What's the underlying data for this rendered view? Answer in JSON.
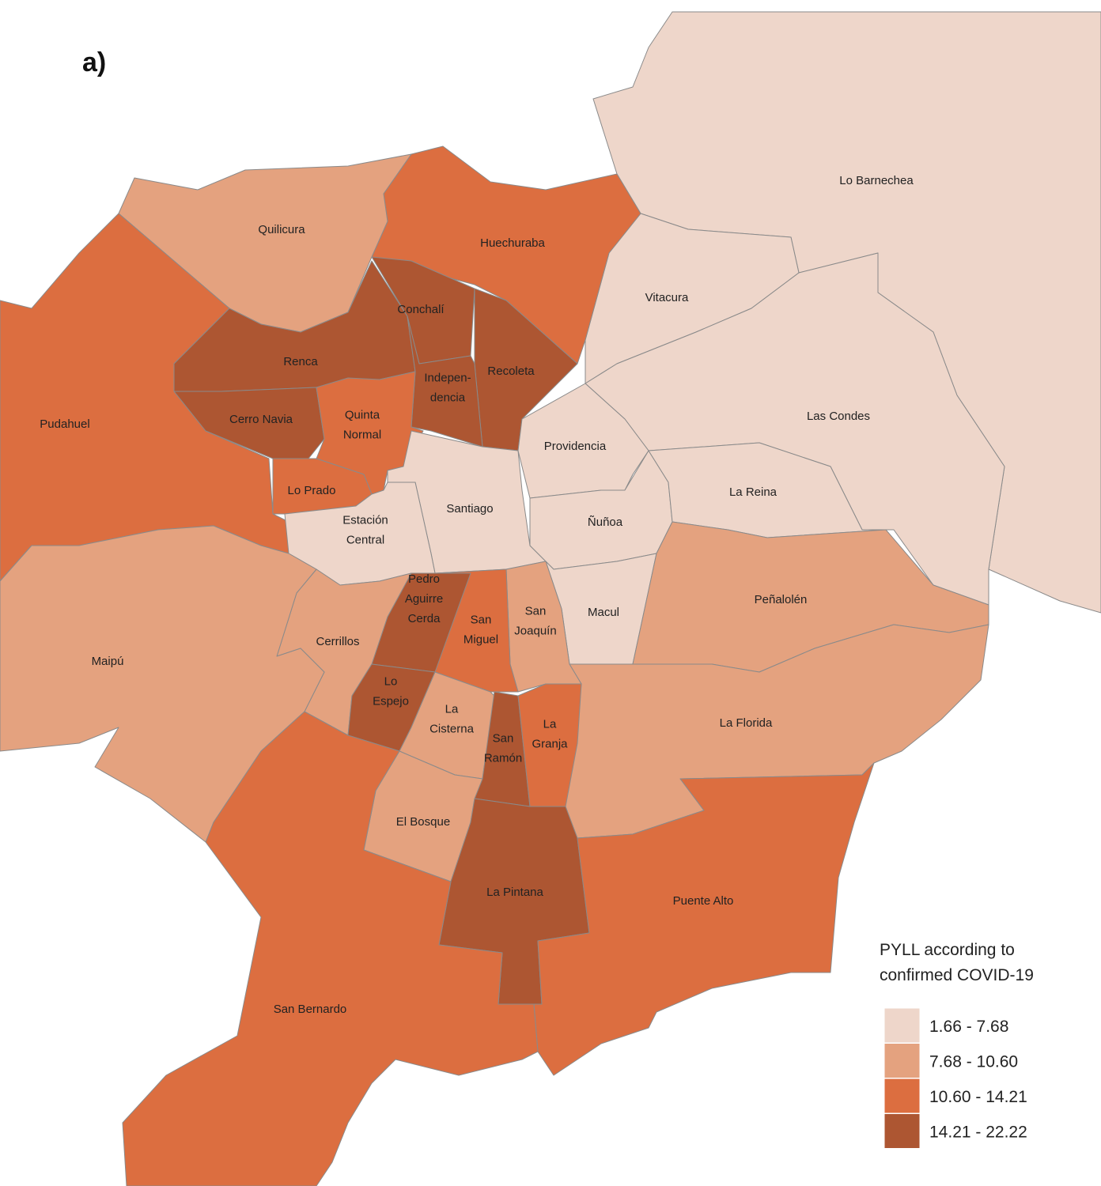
{
  "panel_label": "a)",
  "legend": {
    "title": [
      "PYLL according to",
      "confirmed COVID-19"
    ],
    "classes": [
      {
        "label": "1.66 - 7.68",
        "color": "#eed6ca"
      },
      {
        "label": "7.68 - 10.60",
        "color": "#e4a27f"
      },
      {
        "label": "10.60 - 14.21",
        "color": "#dc6e40"
      },
      {
        "label": "14.21 - 22.22",
        "color": "#ad5632"
      }
    ]
  },
  "regions": [
    {
      "label": [
        "Lo Barnechea"
      ],
      "class": 0
    },
    {
      "label": [
        "Vitacura"
      ],
      "class": 0
    },
    {
      "label": [
        "Las Condes"
      ],
      "class": 0
    },
    {
      "label": [
        "Huechuraba"
      ],
      "class": 2
    },
    {
      "label": [
        "Quilicura"
      ],
      "class": 1
    },
    {
      "label": [
        "Pudahuel"
      ],
      "class": 2
    },
    {
      "label": [
        "Renca"
      ],
      "class": 3
    },
    {
      "label": [
        "Conchalí"
      ],
      "class": 3
    },
    {
      "label": [
        "Recoleta"
      ],
      "class": 3
    },
    {
      "label": [
        "Indepen-",
        "dencia"
      ],
      "class": 3
    },
    {
      "label": [
        "Cerro Navia"
      ],
      "class": 3
    },
    {
      "label": [
        "Quinta",
        "Normal"
      ],
      "class": 2
    },
    {
      "label": [
        "Lo Prado"
      ],
      "class": 2
    },
    {
      "label": [
        "Santiago"
      ],
      "class": 0
    },
    {
      "label": [
        "Estación",
        "Central"
      ],
      "class": 0
    },
    {
      "label": [
        "Providencia"
      ],
      "class": 0
    },
    {
      "label": [
        "Ñuñoa"
      ],
      "class": 0
    },
    {
      "label": [
        "La Reina"
      ],
      "class": 0
    },
    {
      "label": [
        "Macul"
      ],
      "class": 0
    },
    {
      "label": [
        "Peñalolén"
      ],
      "class": 1
    },
    {
      "label": [
        "La Florida"
      ],
      "class": 1
    },
    {
      "label": [
        "San",
        "Joaquín"
      ],
      "class": 1
    },
    {
      "label": [
        "San",
        "Miguel"
      ],
      "class": 2
    },
    {
      "label": [
        "Pedro",
        "Aguirre",
        "Cerda"
      ],
      "class": 3
    },
    {
      "label": [
        "Cerrillos"
      ],
      "class": 1
    },
    {
      "label": [
        "Maipú"
      ],
      "class": 1
    },
    {
      "label": [
        "Lo",
        "Espejo"
      ],
      "class": 3
    },
    {
      "label": [
        "La",
        "Cisterna"
      ],
      "class": 1
    },
    {
      "label": [
        "San",
        "Ramón"
      ],
      "class": 3
    },
    {
      "label": [
        "La",
        "Granja"
      ],
      "class": 2
    },
    {
      "label": [
        "El Bosque"
      ],
      "class": 1
    },
    {
      "label": [
        "La Pintana"
      ],
      "class": 3
    },
    {
      "label": [
        "Puente Alto"
      ],
      "class": 2
    },
    {
      "label": [
        "San Bernardo"
      ],
      "class": 2
    }
  ]
}
